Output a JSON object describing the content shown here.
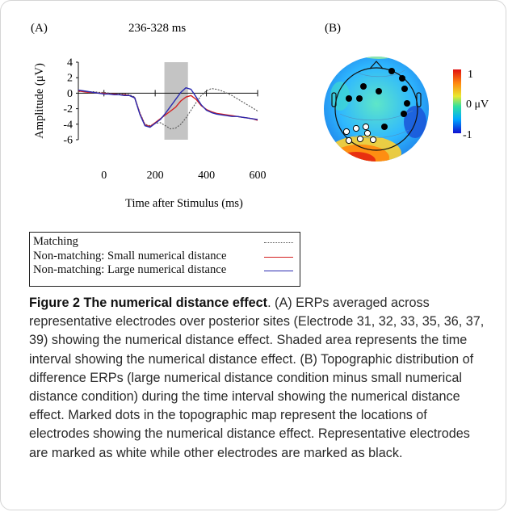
{
  "panel_a_label": "(A)",
  "panel_b_label": "(B)",
  "time_window_label": "236-328 ms",
  "colorbar": {
    "max_label": "1",
    "mid_label": "0 μV",
    "min_label": "-1"
  },
  "legend": [
    {
      "label": "Matching",
      "color": "#555555",
      "style": "dotted"
    },
    {
      "label": "Non-matching: Small numerical distance",
      "color": "#d42020",
      "style": "solid"
    },
    {
      "label": "Non-matching: Large numerical distance",
      "color": "#2a2ab0",
      "style": "solid"
    }
  ],
  "caption": {
    "title": "Figure 2 The numerical distance effect",
    "text": ". (A) ERPs averaged across representative electrodes over posterior sites (Electrode 31, 32, 33, 35, 36, 37, 39) showing the numerical distance effect. Shaded area represents the time interval showing the numerical distance effect. (B) Topographic distribution of difference ERPs (large numerical distance condition minus small numerical distance condition) during the time interval showing the numerical distance effect. Marked dots in the topographic map represent the locations of electrodes showing the numerical distance effect. Representative electrodes are marked as white while other electrodes are marked as black."
  },
  "chart_data": [
    {
      "type": "line",
      "xlabel": "Time after Stimulus (ms)",
      "ylabel": "Amplitude (μV)",
      "xlim": [
        -100,
        600
      ],
      "ylim": [
        -6,
        4
      ],
      "x_ticks": [
        0,
        200,
        400,
        600
      ],
      "y_ticks": [
        4,
        2,
        0,
        -2,
        -4,
        -6
      ],
      "shaded_interval": [
        236,
        328
      ],
      "series": [
        {
          "name": "Matching",
          "color": "#555555",
          "dash": "2,1.6",
          "x": [
            -100,
            -80,
            -60,
            -40,
            -20,
            0,
            20,
            40,
            60,
            80,
            100,
            120,
            140,
            160,
            180,
            200,
            220,
            240,
            260,
            280,
            300,
            320,
            340,
            360,
            380,
            400,
            420,
            440,
            460,
            480,
            500,
            520,
            540,
            560,
            580,
            600
          ],
          "y": [
            0.2,
            0.3,
            0.2,
            0.2,
            0.1,
            0.1,
            0.0,
            -0.1,
            -0.1,
            -0.1,
            -0.2,
            -0.5,
            -2.5,
            -4.0,
            -4.2,
            -3.9,
            -3.8,
            -4.2,
            -4.6,
            -4.5,
            -4.0,
            -3.2,
            -2.2,
            -1.2,
            -0.3,
            0.3,
            0.6,
            0.5,
            0.3,
            0.0,
            -0.3,
            -0.7,
            -1.1,
            -1.5,
            -1.9,
            -2.3
          ]
        },
        {
          "name": "Non-matching: Small numerical distance",
          "color": "#d42020",
          "dash": "",
          "x": [
            -100,
            -80,
            -60,
            -40,
            -20,
            0,
            20,
            40,
            60,
            80,
            100,
            120,
            140,
            160,
            180,
            200,
            220,
            240,
            260,
            280,
            300,
            320,
            340,
            360,
            380,
            400,
            420,
            440,
            460,
            480,
            500,
            520,
            540,
            560,
            580,
            600
          ],
          "y": [
            0.3,
            0.2,
            0.1,
            0.1,
            0.0,
            0.0,
            -0.1,
            -0.1,
            -0.2,
            -0.2,
            -0.3,
            -0.6,
            -2.6,
            -4.1,
            -4.3,
            -3.8,
            -3.3,
            -2.8,
            -2.3,
            -1.8,
            -1.0,
            -0.5,
            -0.3,
            -0.8,
            -1.6,
            -2.1,
            -2.4,
            -2.6,
            -2.7,
            -2.8,
            -2.9,
            -3.0,
            -3.1,
            -3.2,
            -3.3,
            -3.5
          ]
        },
        {
          "name": "Non-matching: Large numerical distance",
          "color": "#2a2ab0",
          "dash": "",
          "x": [
            -100,
            -80,
            -60,
            -40,
            -20,
            0,
            20,
            40,
            60,
            80,
            100,
            120,
            140,
            160,
            180,
            200,
            220,
            240,
            260,
            280,
            300,
            320,
            340,
            360,
            380,
            400,
            420,
            440,
            460,
            480,
            500,
            520,
            540,
            560,
            580,
            600
          ],
          "y": [
            0.4,
            0.3,
            0.2,
            0.1,
            0.0,
            -0.1,
            -0.1,
            -0.2,
            -0.2,
            -0.3,
            -0.3,
            -0.6,
            -2.7,
            -4.2,
            -4.4,
            -3.9,
            -3.4,
            -2.6,
            -1.7,
            -0.8,
            0.1,
            0.7,
            0.5,
            -0.5,
            -1.5,
            -2.2,
            -2.5,
            -2.7,
            -2.8,
            -2.9,
            -3.0,
            -3.0,
            -3.1,
            -3.2,
            -3.3,
            -3.4
          ]
        }
      ]
    },
    {
      "type": "heatmap",
      "description_of_scale": "topographic map",
      "value_range": [
        -1,
        1
      ],
      "colormap": [
        "#1010d0",
        "#00a8ff",
        "#30e0a0",
        "#e8e830",
        "#ff8a10",
        "#e01010"
      ],
      "electrodes_black": 10,
      "electrodes_white": 7
    }
  ]
}
